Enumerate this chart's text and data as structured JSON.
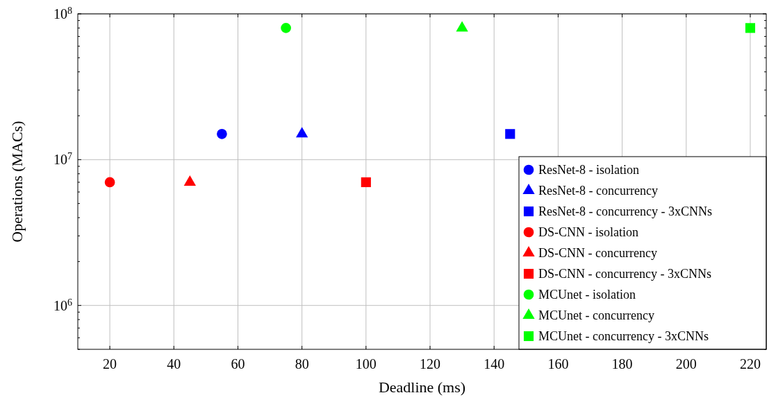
{
  "chart_data": {
    "type": "scatter",
    "xlabel": "Deadline (ms)",
    "ylabel": "Operations (MACs)",
    "log": "y",
    "grid": true,
    "legend": "bottom right",
    "xlim": [
      10,
      225
    ],
    "xticks": [
      20,
      40,
      60,
      80,
      100,
      120,
      140,
      160,
      180,
      200,
      220
    ],
    "ylim": [
      500000,
      100000000
    ],
    "yticks": [
      {
        "value": 500000,
        "label": null
      },
      {
        "value": 600000,
        "label": null
      },
      {
        "value": 700000,
        "label": null
      },
      {
        "value": 800000,
        "label": null
      },
      {
        "value": 900000,
        "label": null
      },
      {
        "value": 1000000,
        "label": "10$^{6}$"
      },
      {
        "value": 2000000,
        "label": null
      },
      {
        "value": 3000000,
        "label": null
      },
      {
        "value": 4000000,
        "label": null
      },
      {
        "value": 5000000,
        "label": null
      },
      {
        "value": 6000000,
        "label": null
      },
      {
        "value": 7000000,
        "label": null
      },
      {
        "value": 8000000,
        "label": null
      },
      {
        "value": 9000000,
        "label": null
      },
      {
        "value": 10000000,
        "label": "10$^{7}$"
      },
      {
        "value": 20000000,
        "label": null
      },
      {
        "value": 30000000,
        "label": null
      },
      {
        "value": 40000000,
        "label": null
      },
      {
        "value": 50000000,
        "label": null
      },
      {
        "value": 60000000,
        "label": null
      },
      {
        "value": 70000000,
        "label": null
      },
      {
        "value": 80000000,
        "label": null
      },
      {
        "value": 90000000,
        "label": null
      },
      {
        "value": 100000000,
        "label": "10$^{8}$"
      }
    ],
    "series": [
      {
        "name": "ResNet-8 - isolation",
        "color": "#0000ff",
        "marker": "circle",
        "x": [
          55
        ],
        "values": [
          15000000
        ]
      },
      {
        "name": "ResNet-8 - concurrency",
        "color": "#0000ff",
        "marker": "triangle",
        "x": [
          80
        ],
        "values": [
          15000000
        ]
      },
      {
        "name": "ResNet-8 - concurrency - 3xCNNs",
        "color": "#0000ff",
        "marker": "square",
        "x": [
          145
        ],
        "values": [
          15000000
        ]
      },
      {
        "name": "DS-CNN - isolation",
        "color": "#ff0000",
        "marker": "circle",
        "x": [
          20
        ],
        "values": [
          7000000
        ]
      },
      {
        "name": "DS-CNN - concurrency",
        "color": "#ff0000",
        "marker": "triangle",
        "x": [
          45
        ],
        "values": [
          7000000
        ]
      },
      {
        "name": "DS-CNN - concurrency - 3xCNNs",
        "color": "#ff0000",
        "marker": "square",
        "x": [
          100
        ],
        "values": [
          7000000
        ]
      },
      {
        "name": "MCUnet - isolation",
        "color": "#00ff00",
        "marker": "circle",
        "x": [
          75
        ],
        "values": [
          80000000
        ]
      },
      {
        "name": "MCUnet - concurrency",
        "color": "#00ff00",
        "marker": "triangle",
        "x": [
          130
        ],
        "values": [
          80000000
        ]
      },
      {
        "name": "MCUnet - concurrency - 3xCNNs",
        "color": "#00ff00",
        "marker": "square",
        "x": [
          220
        ],
        "values": [
          80000000
        ]
      }
    ]
  }
}
